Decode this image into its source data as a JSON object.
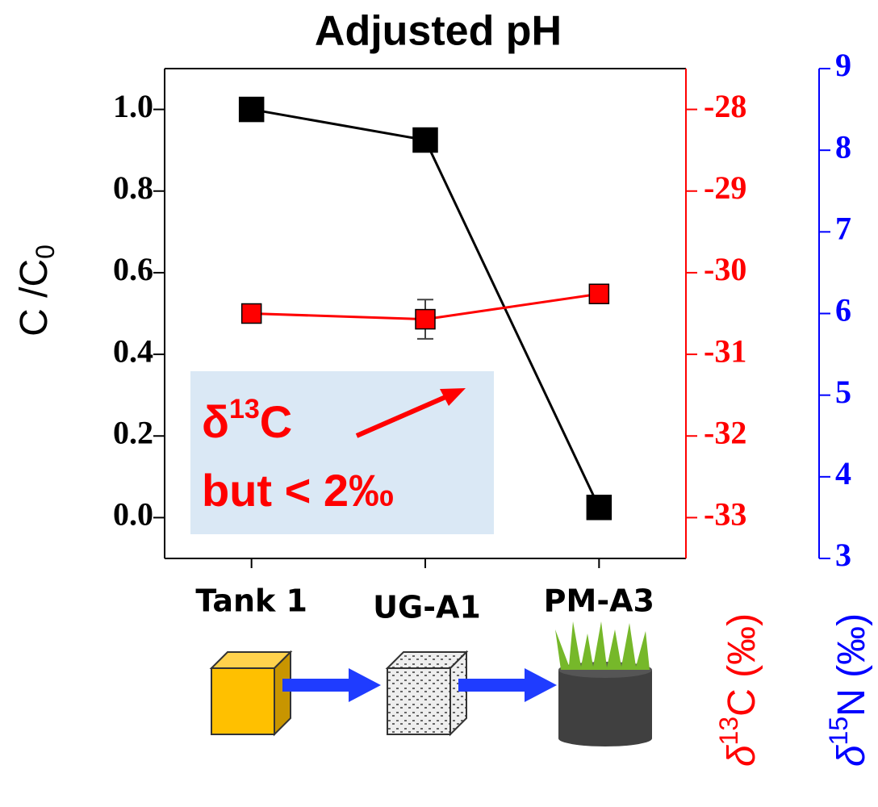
{
  "chart_data": {
    "type": "line",
    "title": "Adjusted pH",
    "categories": [
      "Tank 1",
      "UG-A1",
      "PM-A3"
    ],
    "y_label": {
      "main": "C /C",
      "sub": "0"
    },
    "y2_label": {
      "delta": "δ",
      "sup": "13",
      "rest": "C (‰)"
    },
    "y3_label": {
      "delta": "δ",
      "sup": "15",
      "rest": "N (‰)"
    },
    "ylim": [
      -0.1,
      1.1
    ],
    "yticks": [
      {
        "value": 0,
        "label": "0.0"
      },
      {
        "value": 0.2,
        "label": "0.2"
      },
      {
        "value": 0.4,
        "label": "0.4"
      },
      {
        "value": 0.6,
        "label": "0.6"
      },
      {
        "value": 0.8,
        "label": "0.8"
      },
      {
        "value": 1,
        "label": "1.0"
      }
    ],
    "y2lim": [
      -33.5,
      -27.5
    ],
    "y2ticks": [
      -33,
      -32,
      -31,
      -30,
      -29,
      -28
    ],
    "y3lim": [
      3,
      9
    ],
    "y3ticks": [
      3,
      4,
      5,
      6,
      7,
      8,
      9
    ],
    "y2color": "#ff0000",
    "y3color": "#0000ff",
    "series": [
      {
        "color": "#000000",
        "values": [
          1.0,
          0.925,
          0.025
        ]
      },
      {
        "color": "#ff0000",
        "axis": "y2",
        "values": [
          -30.5,
          -30.57,
          -30.26
        ],
        "errors": [
          0.02,
          0.24,
          0.08
        ]
      }
    ],
    "annotation": {
      "delta": "δ",
      "sup": "13",
      "rest": "C",
      "line2": "but < 2‰"
    }
  }
}
